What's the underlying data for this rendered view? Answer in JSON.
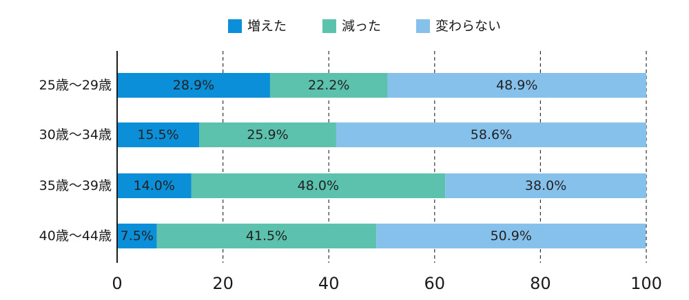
{
  "chart_data": {
    "type": "bar",
    "orientation": "horizontal",
    "stacked": true,
    "categories": [
      "25歳〜29歳",
      "30歳〜34歳",
      "35歳〜39歳",
      "40歳〜44歳"
    ],
    "series": [
      {
        "name": "増えた",
        "values": [
          28.9,
          15.5,
          14.0,
          7.5
        ],
        "labels": [
          "28.9%",
          "15.5%",
          "14.0%",
          "7.5%"
        ],
        "color": "#0a8fd8"
      },
      {
        "name": "減った",
        "values": [
          22.2,
          25.9,
          48.0,
          41.5
        ],
        "labels": [
          "22.2%",
          "25.9%",
          "48.0%",
          "41.5%"
        ],
        "color": "#5cc1ad"
      },
      {
        "name": "変わらない",
        "values": [
          48.9,
          58.6,
          38.0,
          50.9
        ],
        "labels": [
          "48.9%",
          "58.6%",
          "38.0%",
          "50.9%"
        ],
        "color": "#86c1ec"
      }
    ],
    "xlim": [
      0,
      100
    ],
    "xticks": [
      "0",
      "20",
      "40",
      "60",
      "80",
      "100"
    ],
    "grid": "vertical dashed",
    "legend": "top"
  }
}
